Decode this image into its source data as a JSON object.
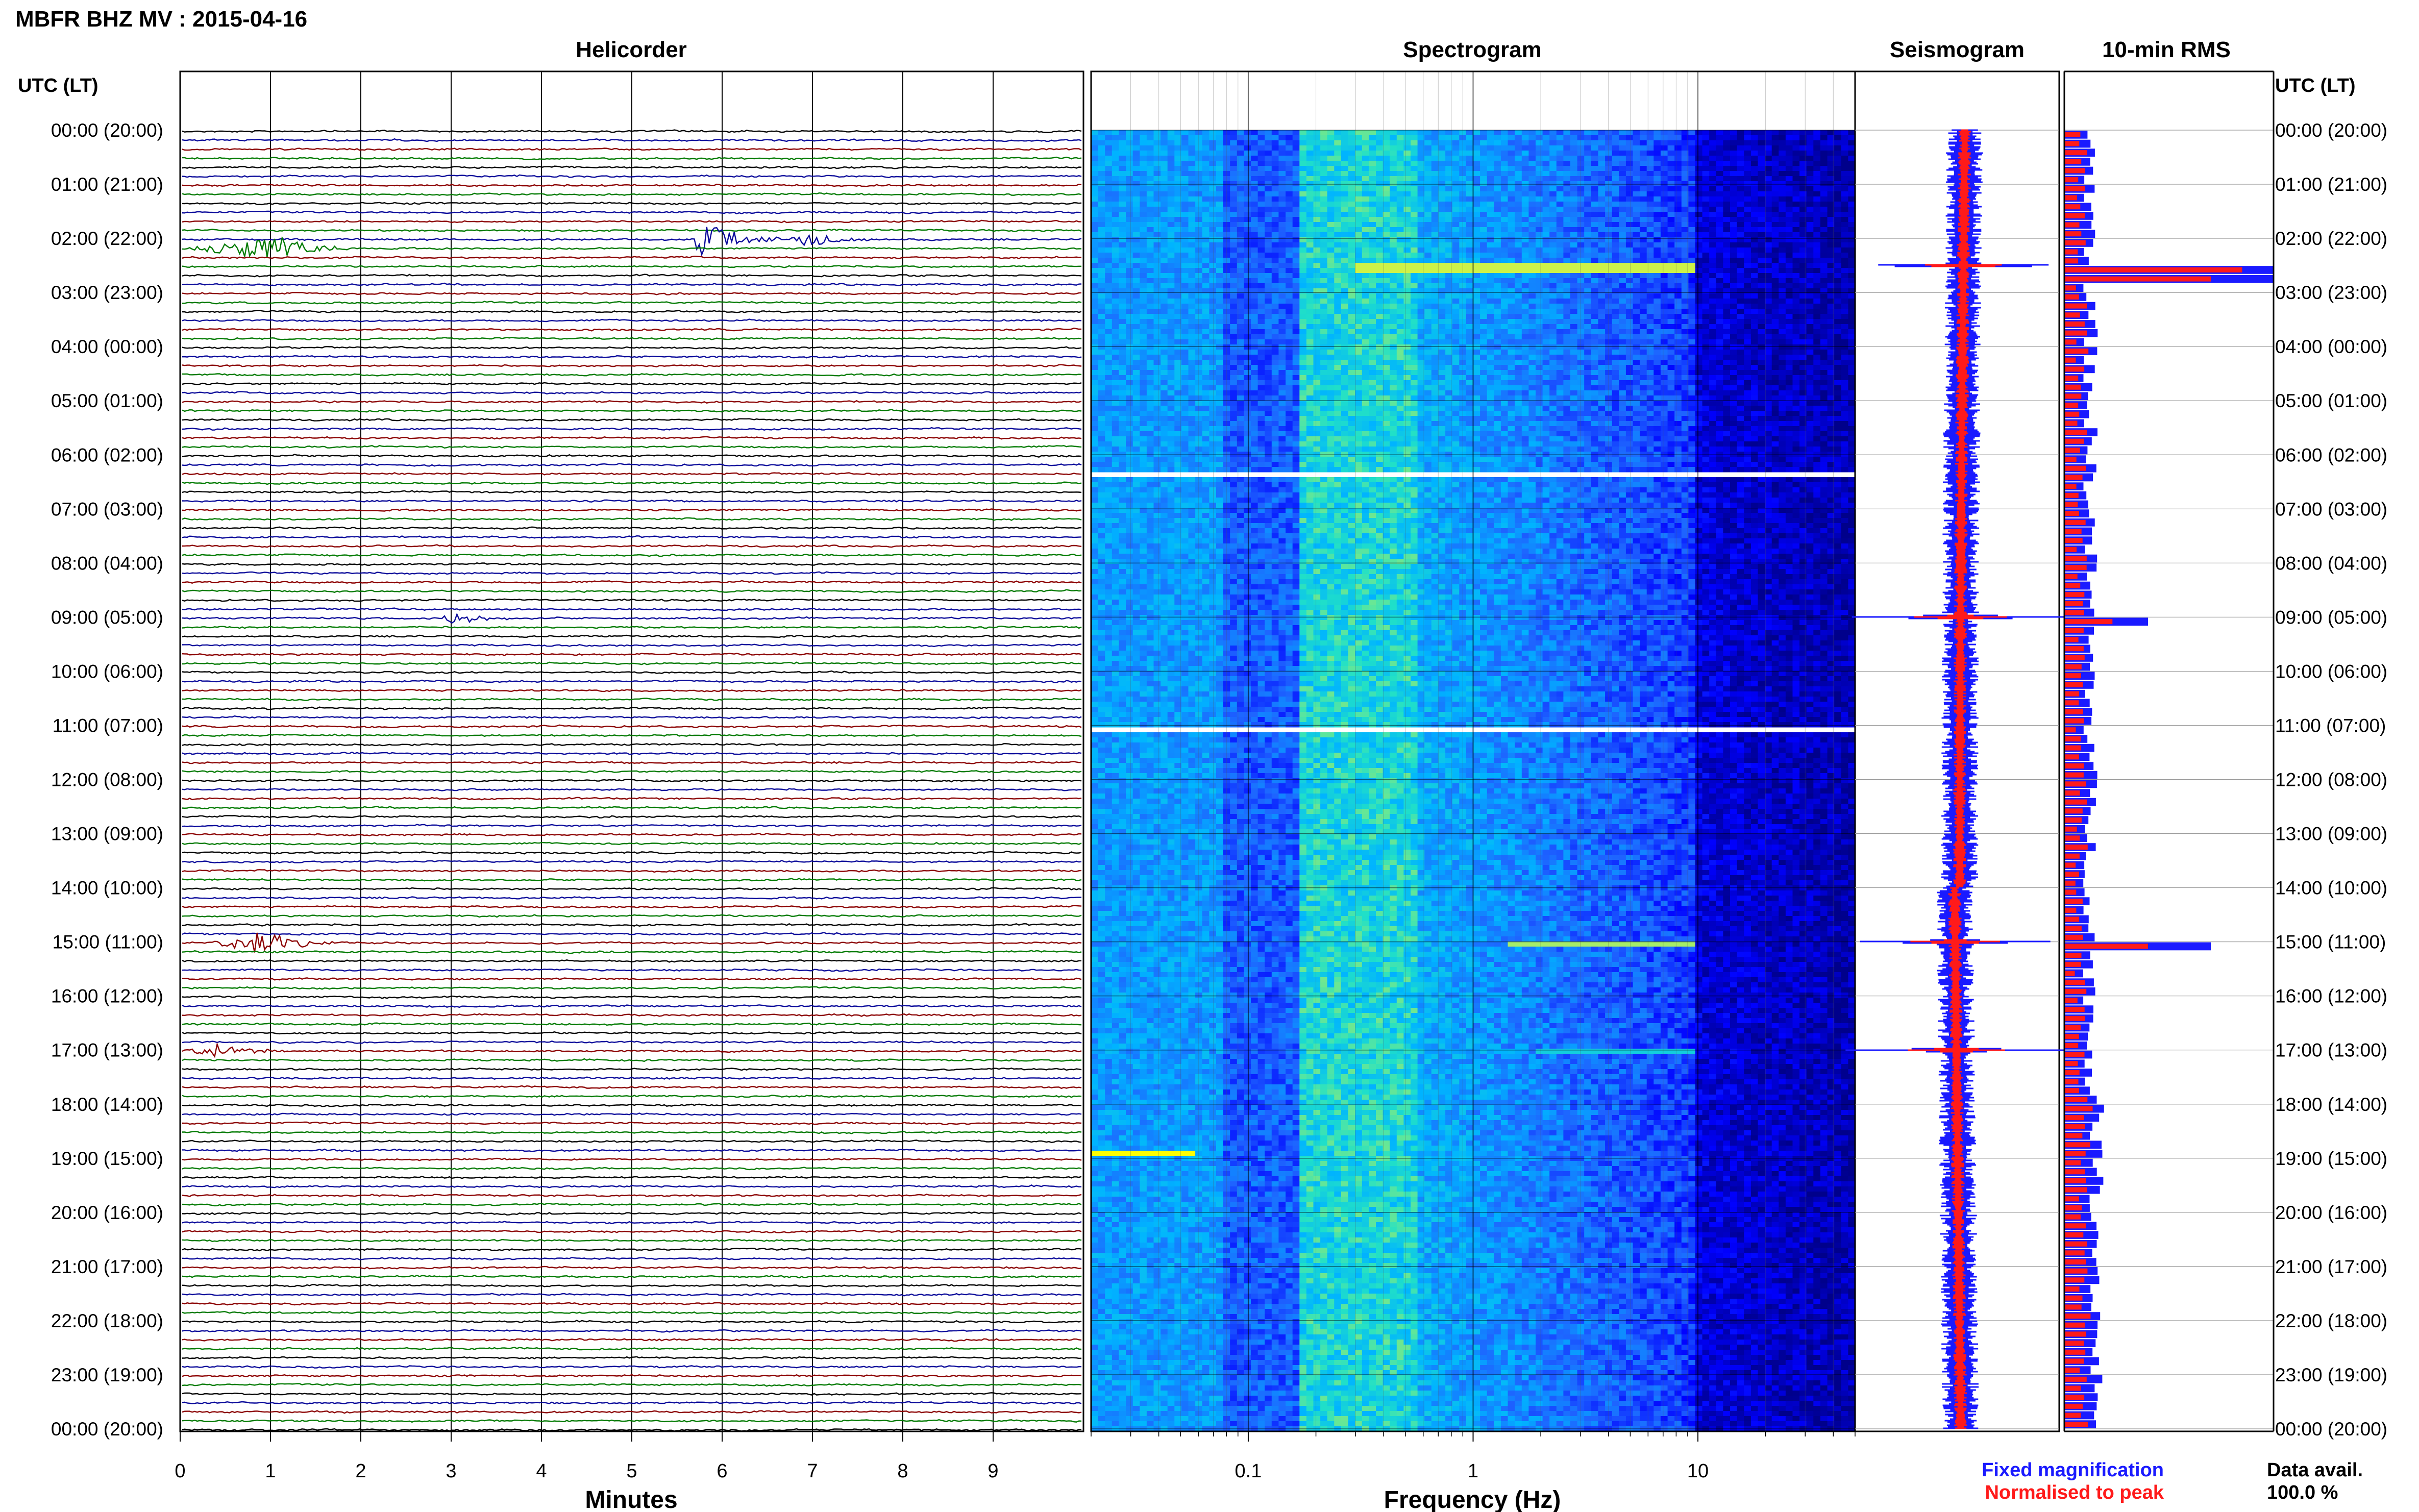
{
  "page": {
    "title": "MBFR BHZ MV : 2015-04-16",
    "left_axis_title": "UTC (LT)",
    "right_axis_title": "UTC (LT)",
    "data_avail_label": "Data avail.",
    "data_avail_value": "100.0 %",
    "legend_fixed": "Fixed magnification",
    "legend_normalised": "Normalised to peak",
    "legend_colors": {
      "fixed": "#1a1aff",
      "normalised": "#ff1a1a"
    }
  },
  "chart_data": [
    {
      "type": "line",
      "name": "helicorder",
      "title": "Helicorder",
      "xlabel": "Minutes",
      "ylabel": "",
      "xlim": [
        0,
        10
      ],
      "xticks": [
        "0",
        "1",
        "2",
        "3",
        "4",
        "5",
        "6",
        "7",
        "8",
        "9"
      ],
      "grid": true,
      "trace_colors": [
        "#000000",
        "#0a0a9a",
        "#8b0000",
        "#007a00"
      ],
      "traces_per_hour": 6,
      "events": [
        {
          "start_utc": "02:10",
          "minute_start": 0.0,
          "minute_peak": 1.1,
          "minute_end": 2.2,
          "amplitude": 0.9,
          "color": "#007a00"
        },
        {
          "start_utc": "02:00",
          "minute_start": 5.7,
          "minute_peak": 5.75,
          "minute_end": 7.0,
          "amplitude": 1.6,
          "color": "#0a0a9a"
        },
        {
          "start_utc": "02:00",
          "minute_start": 6.8,
          "minute_peak": 6.85,
          "minute_end": 7.8,
          "amplitude": 0.8,
          "color": "#0a0a9a"
        },
        {
          "start_utc": "09:00",
          "minute_start": 2.85,
          "minute_peak": 3.0,
          "minute_end": 4.0,
          "amplitude": 0.4,
          "color": "#0a0a9a"
        },
        {
          "start_utc": "15:00",
          "minute_start": 0.2,
          "minute_peak": 0.9,
          "minute_end": 1.9,
          "amplitude": 0.8,
          "color": "#8b0000"
        },
        {
          "start_utc": "17:00",
          "minute_start": 0.0,
          "minute_peak": 0.4,
          "minute_end": 1.2,
          "amplitude": 0.5,
          "color": "#8b0000"
        }
      ]
    },
    {
      "type": "heatmap",
      "name": "spectrogram",
      "title": "Spectrogram",
      "xlabel": "Frequency (Hz)",
      "ylabel": "",
      "xscale": "log",
      "xlim": [
        0.02,
        50
      ],
      "xticks": [
        "0.1",
        "1",
        "10"
      ],
      "colormap": [
        "#00008b",
        "#0000ff",
        "#1e64ff",
        "#00b4ff",
        "#20e0c8",
        "#c8f050",
        "#ffff00"
      ],
      "gaps_utc": [
        "06:20",
        "11:00"
      ],
      "highlights": [
        {
          "utc": "02:30",
          "fmin": 0.3,
          "fmax": 10,
          "intensity": 0.85
        },
        {
          "utc": "15:00",
          "fmin": 1.5,
          "fmax": 10,
          "intensity": 0.8
        },
        {
          "utc": "17:00",
          "fmin": 2,
          "fmax": 10,
          "intensity": 0.6
        },
        {
          "utc": "18:50",
          "fmin": 0.02,
          "fmax": 0.06,
          "intensity": 1.0
        }
      ]
    },
    {
      "type": "line",
      "name": "seismogram",
      "title": "Seismogram",
      "series": [
        {
          "name": "Fixed magnification",
          "color": "#1a1aff"
        },
        {
          "name": "Normalised to peak",
          "color": "#ff1a1a"
        }
      ],
      "spikes_utc": [
        "02:30",
        "09:00",
        "15:00",
        "17:00"
      ]
    },
    {
      "type": "bar",
      "name": "rms",
      "title": "10-min RMS",
      "orientation": "horizontal",
      "series": [
        {
          "name": "Fixed magnification",
          "color": "#1a1aff"
        },
        {
          "name": "Normalised to peak",
          "color": "#ff1a1a"
        }
      ],
      "peaks_utc": [
        {
          "utc": "02:30",
          "fixed": 1.0,
          "normalised": 0.85
        },
        {
          "utc": "02:40",
          "fixed": 1.0,
          "normalised": 0.7
        },
        {
          "utc": "09:00",
          "fixed": 0.4,
          "normalised": 0.23
        },
        {
          "utc": "15:00",
          "fixed": 0.7,
          "normalised": 0.4
        }
      ]
    }
  ],
  "time_axis": {
    "hours_utc": [
      "00:00",
      "01:00",
      "02:00",
      "03:00",
      "04:00",
      "05:00",
      "06:00",
      "07:00",
      "08:00",
      "09:00",
      "10:00",
      "11:00",
      "12:00",
      "13:00",
      "14:00",
      "15:00",
      "16:00",
      "17:00",
      "18:00",
      "19:00",
      "20:00",
      "21:00",
      "22:00",
      "23:00",
      "00:00"
    ],
    "labels": [
      "00:00 (20:00)",
      "01:00 (21:00)",
      "02:00 (22:00)",
      "03:00 (23:00)",
      "04:00 (00:00)",
      "05:00 (01:00)",
      "06:00 (02:00)",
      "07:00 (03:00)",
      "08:00 (04:00)",
      "09:00 (05:00)",
      "10:00 (06:00)",
      "11:00 (07:00)",
      "12:00 (08:00)",
      "13:00 (09:00)",
      "14:00 (10:00)",
      "15:00 (11:00)",
      "16:00 (12:00)",
      "17:00 (13:00)",
      "18:00 (14:00)",
      "19:00 (15:00)",
      "20:00 (16:00)",
      "21:00 (17:00)",
      "22:00 (18:00)",
      "23:00 (19:00)",
      "00:00 (20:00)"
    ]
  }
}
